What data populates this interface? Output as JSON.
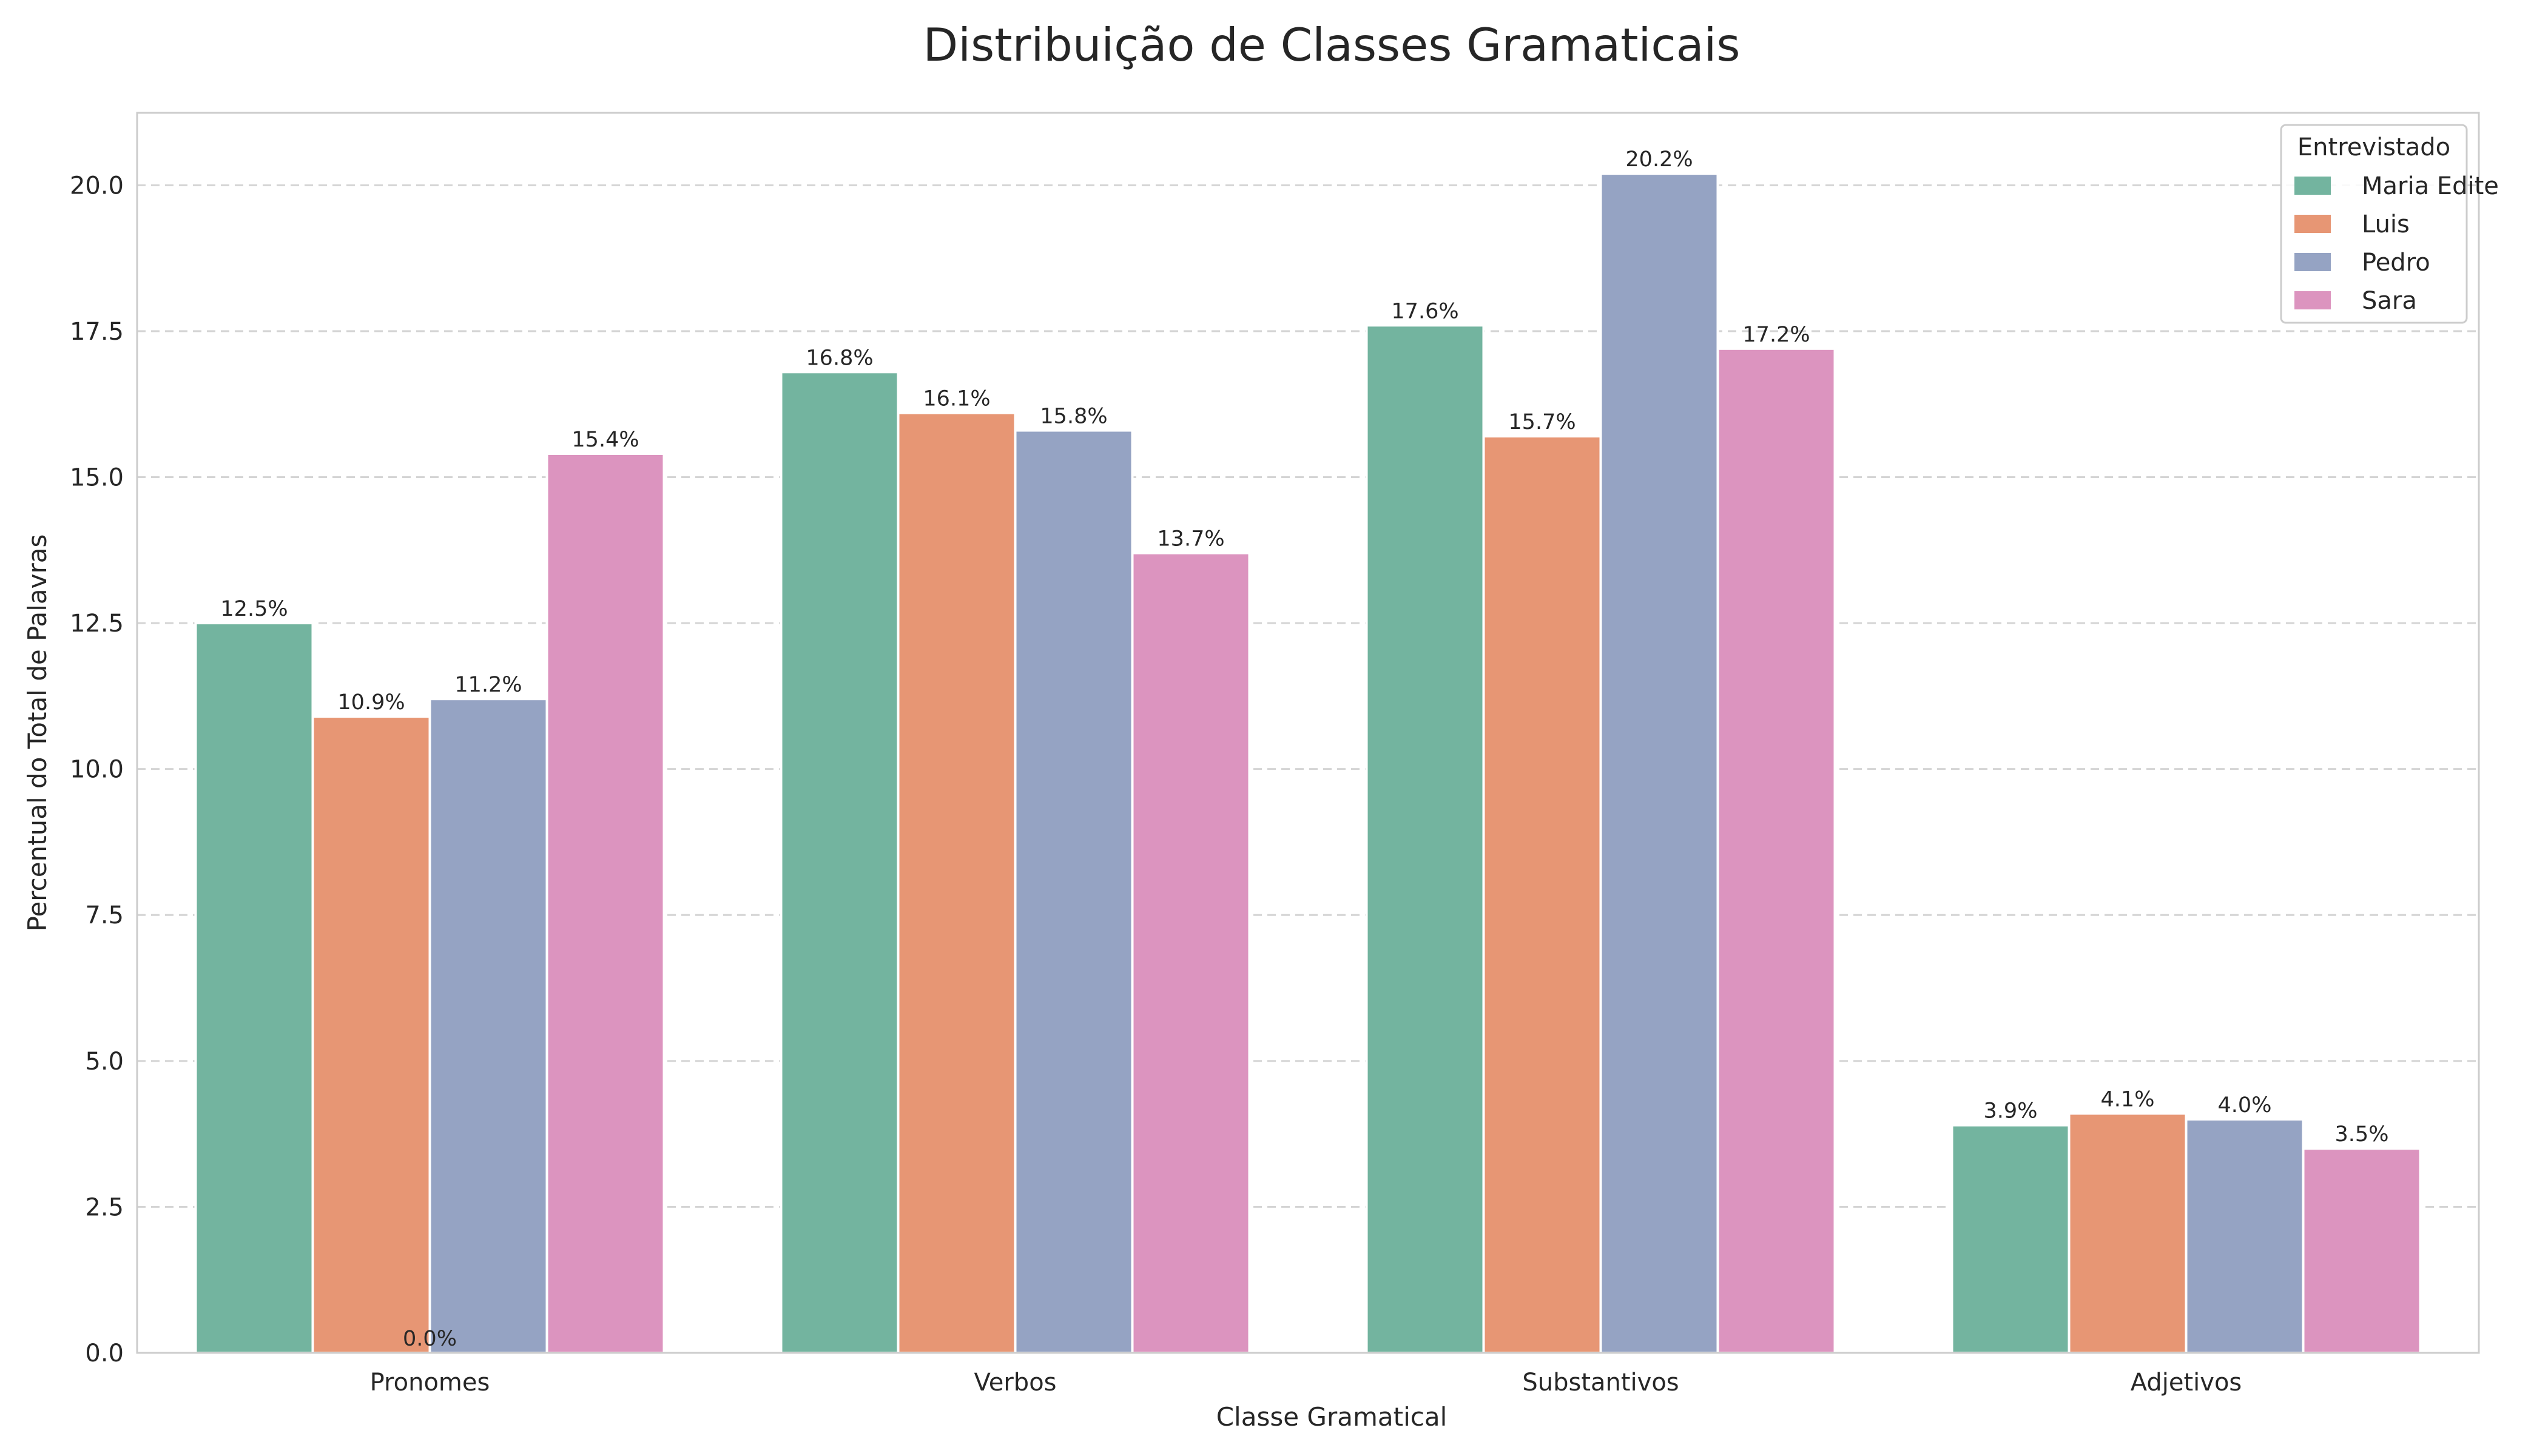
{
  "chart_data": {
    "type": "bar",
    "title": "Distribuição de Classes Gramaticais",
    "xlabel": "Classe Gramatical",
    "ylabel": "Percentual do Total de Palavras",
    "categories": [
      "Pronomes",
      "Verbos",
      "Substantivos",
      "Adjetivos"
    ],
    "series": [
      {
        "name": "Maria Edite",
        "color": "#73b49f",
        "values": [
          12.5,
          16.8,
          17.6,
          3.9
        ],
        "labels": [
          "12.5%",
          "16.8%",
          "17.6%",
          "3.9%"
        ]
      },
      {
        "name": "Luis",
        "color": "#e79674",
        "values": [
          10.9,
          16.1,
          15.7,
          4.1
        ],
        "labels": [
          "10.9%",
          "16.1%",
          "15.7%",
          "4.1%"
        ]
      },
      {
        "name": "Pedro",
        "color": "#95a3c3",
        "values": [
          11.2,
          15.8,
          20.2,
          4.0
        ],
        "labels": [
          "11.2%",
          "15.8%",
          "20.2%",
          "4.0%"
        ]
      },
      {
        "name": "Sara",
        "color": "#dc94bf",
        "values": [
          15.4,
          13.7,
          17.2,
          3.5
        ],
        "labels": [
          "15.4%",
          "13.7%",
          "17.2%",
          "3.5%"
        ]
      }
    ],
    "annotations": [
      {
        "text": "0.0%",
        "category": "Pronomes",
        "value": 0.0
      }
    ],
    "yticks": [
      "0.0",
      "2.5",
      "5.0",
      "7.5",
      "10.0",
      "12.5",
      "15.0",
      "17.5",
      "20.0"
    ],
    "ylim": [
      0,
      21.24
    ],
    "grid": true,
    "legend": {
      "title": "Entrevistado",
      "placement": "top-right"
    }
  }
}
